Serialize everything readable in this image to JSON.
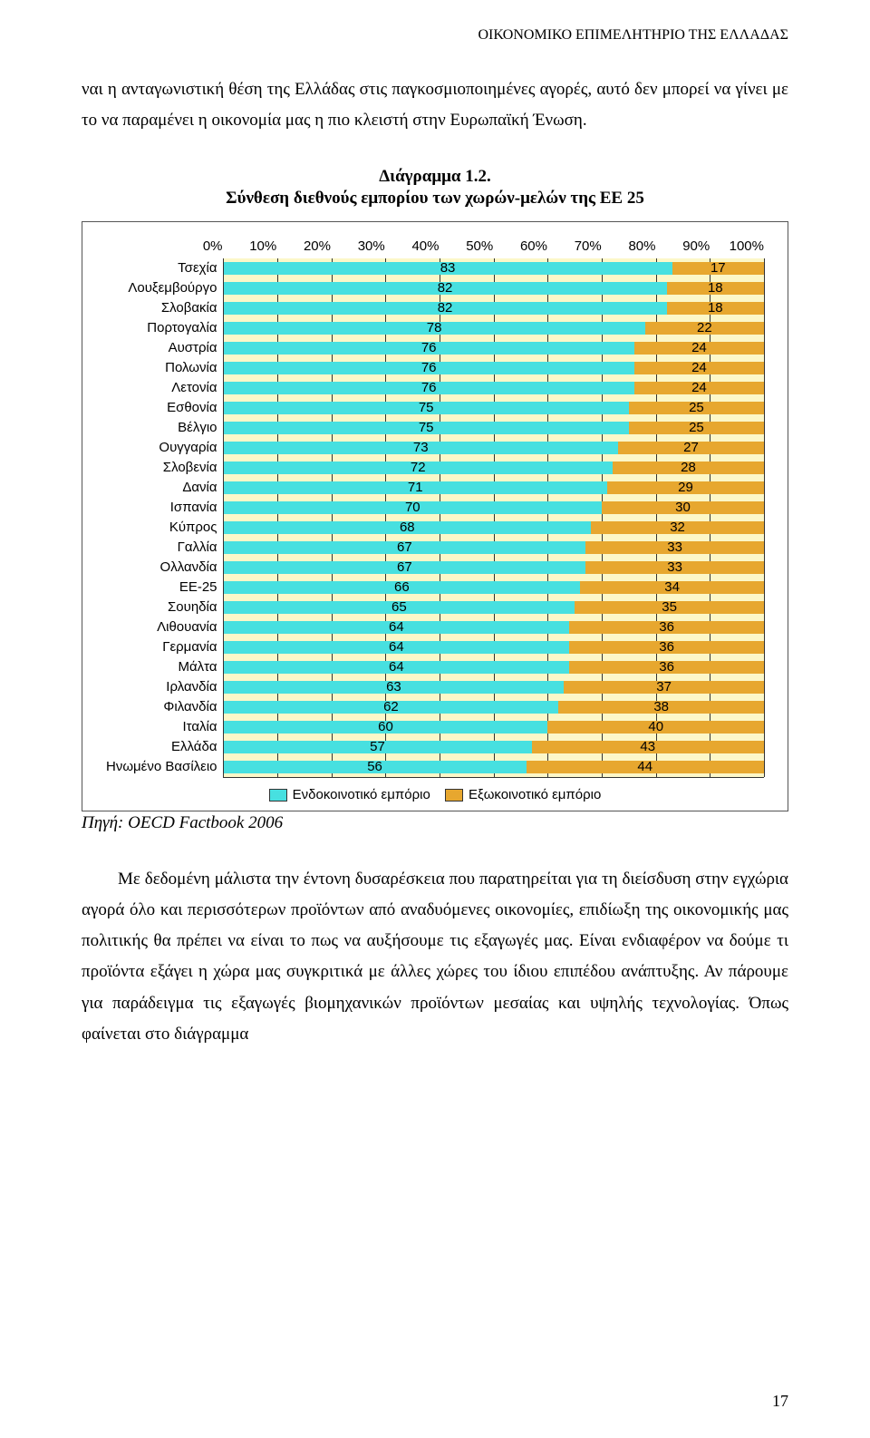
{
  "header": "ΟΙΚΟΝΟΜΙΚΟ ΕΠΙΜΕΛΗΤΗΡΙΟ ΤΗΣ ΕΛΛΑΔΑΣ",
  "para1": "ναι η ανταγωνιστική θέση της Ελλάδας στις παγκοσμιοποιημένες αγορές, αυτό δεν μπορεί να γίνει με το να παραμένει η οικονομία μας η πιο κλειστή στην Ευρωπαϊκή Ένωση.",
  "diagram_label": "Διάγραμμα 1.2.",
  "diagram_title": "Σύνθεση διεθνούς εμπορίου των χωρών-μελών της ΕΕ 25",
  "source": "Πηγή: OECD Factbook 2006",
  "para2": "Με δεδομένη μάλιστα την έντονη δυσαρέσκεια που παρατηρείται για τη διείσδυση στην εγχώρια αγορά όλο και περισσότερων προϊόντων από αναδυόμενες οικονομίες, επιδίωξη της οικονομικής μας πολιτικής θα πρέπει να είναι το πως να αυξήσουμε τις εξαγωγές μας. Είναι ενδιαφέρον να δούμε τι προϊόντα εξάγει η χώρα μας συγκριτικά με άλλες χώρες του ίδιου επιπέδου ανάπτυξης. Αν πάρουμε για παράδειγμα τις εξαγωγές βιομηχανικών προϊόντων μεσαίας και υψηλής τεχνολογίας. Όπως φαίνεται στο διάγραμμα",
  "page_number": "17",
  "chart": {
    "type": "stacked-bar-horizontal",
    "x_ticks": [
      "0%",
      "10%",
      "20%",
      "30%",
      "40%",
      "50%",
      "60%",
      "70%",
      "80%",
      "90%",
      "100%"
    ],
    "series_a_color": "#47e0e0",
    "series_b_color": "#e7a72f",
    "plot_bg": "#fcf7c8",
    "grid_color": "#333333",
    "label_font_size": 15,
    "legend": {
      "a": "Ενδοκοινοτικό εμπόριο",
      "b": "Εξωκοινοτικό εμπόριο"
    },
    "rows": [
      {
        "label": "Τσεχία",
        "a": 83,
        "b": 17
      },
      {
        "label": "Λουξεμβούργο",
        "a": 82,
        "b": 18
      },
      {
        "label": "Σλοβακία",
        "a": 82,
        "b": 18
      },
      {
        "label": "Πορτογαλία",
        "a": 78,
        "b": 22
      },
      {
        "label": "Αυστρία",
        "a": 76,
        "b": 24
      },
      {
        "label": "Πολωνία",
        "a": 76,
        "b": 24
      },
      {
        "label": "Λετονία",
        "a": 76,
        "b": 24
      },
      {
        "label": "Εσθονία",
        "a": 75,
        "b": 25
      },
      {
        "label": "Βέλγιο",
        "a": 75,
        "b": 25
      },
      {
        "label": "Ουγγαρία",
        "a": 73,
        "b": 27
      },
      {
        "label": "Σλοβενία",
        "a": 72,
        "b": 28
      },
      {
        "label": "Δανία",
        "a": 71,
        "b": 29
      },
      {
        "label": "Ισπανία",
        "a": 70,
        "b": 30
      },
      {
        "label": "Κύπρος",
        "a": 68,
        "b": 32
      },
      {
        "label": "Γαλλία",
        "a": 67,
        "b": 33
      },
      {
        "label": "Ολλανδία",
        "a": 67,
        "b": 33
      },
      {
        "label": "ΕΕ-25",
        "a": 66,
        "b": 34
      },
      {
        "label": "Σουηδία",
        "a": 65,
        "b": 35
      },
      {
        "label": "Λιθουανία",
        "a": 64,
        "b": 36
      },
      {
        "label": "Γερμανία",
        "a": 64,
        "b": 36
      },
      {
        "label": "Μάλτα",
        "a": 64,
        "b": 36
      },
      {
        "label": "Ιρλανδία",
        "a": 63,
        "b": 37
      },
      {
        "label": "Φιλανδία",
        "a": 62,
        "b": 38
      },
      {
        "label": "Ιταλία",
        "a": 60,
        "b": 40
      },
      {
        "label": "Ελλάδα",
        "a": 57,
        "b": 43
      },
      {
        "label": "Ηνωμένο Βασίλειο",
        "a": 56,
        "b": 44
      }
    ]
  }
}
